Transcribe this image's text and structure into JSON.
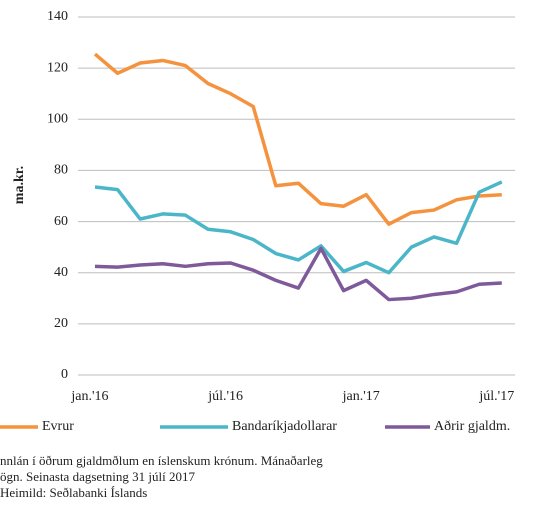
{
  "chart_data": {
    "type": "line",
    "y_label": "ma.kr.",
    "categories": [
      "jan.'16",
      null,
      null,
      null,
      null,
      null,
      "júl.'16",
      null,
      null,
      null,
      null,
      null,
      "jan.'17",
      null,
      null,
      null,
      null,
      null,
      "júl.'17"
    ],
    "series": [
      {
        "name": "Evrur",
        "color": "#f5923e",
        "values": [
          125.5,
          118,
          122,
          123,
          121,
          114,
          110,
          105,
          74,
          75,
          67,
          66,
          70.5,
          59,
          63.5,
          64.5,
          68.5,
          70,
          70.5
        ]
      },
      {
        "name": "Bandaríkjadollarar",
        "color": "#4ab6c8",
        "values": [
          73.5,
          72.5,
          61,
          63,
          62.5,
          57,
          56,
          53,
          47.5,
          45,
          50.5,
          40.5,
          44,
          40,
          50,
          54,
          51.5,
          71.5,
          75.5
        ]
      },
      {
        "name": "Aðrir gjaldm.",
        "color": "#7e5a9b",
        "values": [
          42.5,
          42.2,
          43,
          43.5,
          42.5,
          43.5,
          43.8,
          41,
          37,
          34,
          49.5,
          33,
          37,
          29.5,
          30,
          31.5,
          32.5,
          35.5,
          36
        ]
      }
    ],
    "ylim": [
      0,
      140
    ],
    "yticks": [
      0,
      20,
      40,
      60,
      80,
      100,
      120,
      140
    ],
    "grid": true,
    "notes": [
      "nnlán í öðrum gjaldmðlum en íslenskum krónum. Mánaðarleg",
      "ögn. Seinasta dagsetning 31 júlí 2017",
      "Heimild: Seðlabanki Íslands"
    ]
  }
}
